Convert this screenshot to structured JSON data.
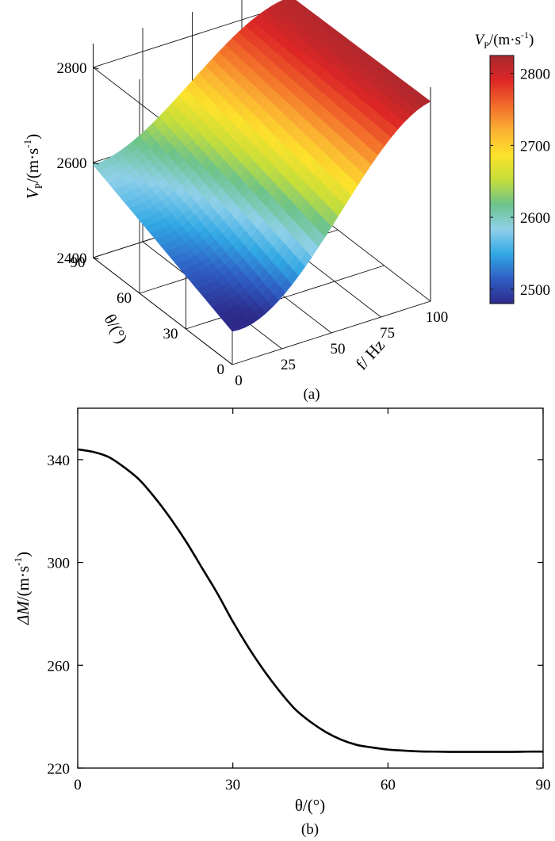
{
  "chart_data": [
    {
      "type": "surface",
      "panel_label": "(a)",
      "z_label_main": "V",
      "z_label_sub": "P",
      "z_label_unit": "/(m·s",
      "z_label_sup": "-1",
      "z_label_close": ")",
      "x_label": "f/ Hz",
      "y_label": "θ/(°)",
      "x_ticks": [
        0,
        25,
        50,
        75,
        100
      ],
      "y_ticks": [
        0,
        30,
        60,
        90
      ],
      "z_ticks": [
        2400,
        2600,
        2800
      ],
      "xlim": [
        0,
        100
      ],
      "ylim": [
        0,
        90
      ],
      "zlim": [
        2400,
        2850
      ],
      "grid": true,
      "colorbar": {
        "title_main": "V",
        "title_sub": "P",
        "title_unit": "/(m·s",
        "title_sup": "-1",
        "title_close": ")",
        "ticks": [
          2500,
          2600,
          2700,
          2800
        ],
        "range": [
          2480,
          2825
        ],
        "placement": "right",
        "colormap": [
          "#2d2a8a",
          "#2f5ec4",
          "#31a8e4",
          "#8fd0ea",
          "#6cc38a",
          "#c6de3a",
          "#fde22c",
          "#fbb033",
          "#f26a2a",
          "#dd2626",
          "#a5292f"
        ]
      },
      "corner_values": {
        "f0_theta0": 2470,
        "f100_theta0": 2820,
        "f0_theta90": 2595,
        "f100_theta90": 2815
      }
    },
    {
      "type": "line",
      "panel_label": "(b)",
      "x_label": "θ/(°)",
      "y_label_main": "ΔM",
      "y_label_unit": "/(m·s",
      "y_label_sup": "-1",
      "y_label_close": ")",
      "x_ticks": [
        0,
        30,
        60,
        90
      ],
      "y_ticks": [
        220,
        260,
        300,
        340
      ],
      "xlim": [
        0,
        90
      ],
      "ylim": [
        220,
        360
      ],
      "grid": false,
      "x": [
        0,
        3,
        6,
        9,
        12,
        15,
        18,
        21,
        24,
        27,
        30,
        33,
        36,
        39,
        42,
        45,
        48,
        51,
        54,
        57,
        60,
        63,
        66,
        69,
        72,
        75,
        78,
        81,
        84,
        87,
        90
      ],
      "y": [
        344,
        343,
        341,
        337,
        332,
        325,
        317,
        308,
        298,
        288,
        277,
        267,
        258,
        250,
        243,
        238,
        234,
        231,
        229,
        228,
        227.2,
        226.8,
        226.5,
        226.4,
        226.3,
        226.3,
        226.3,
        226.3,
        226.3,
        226.4,
        226.4
      ],
      "series": [
        {
          "color": "#000000"
        }
      ]
    }
  ]
}
